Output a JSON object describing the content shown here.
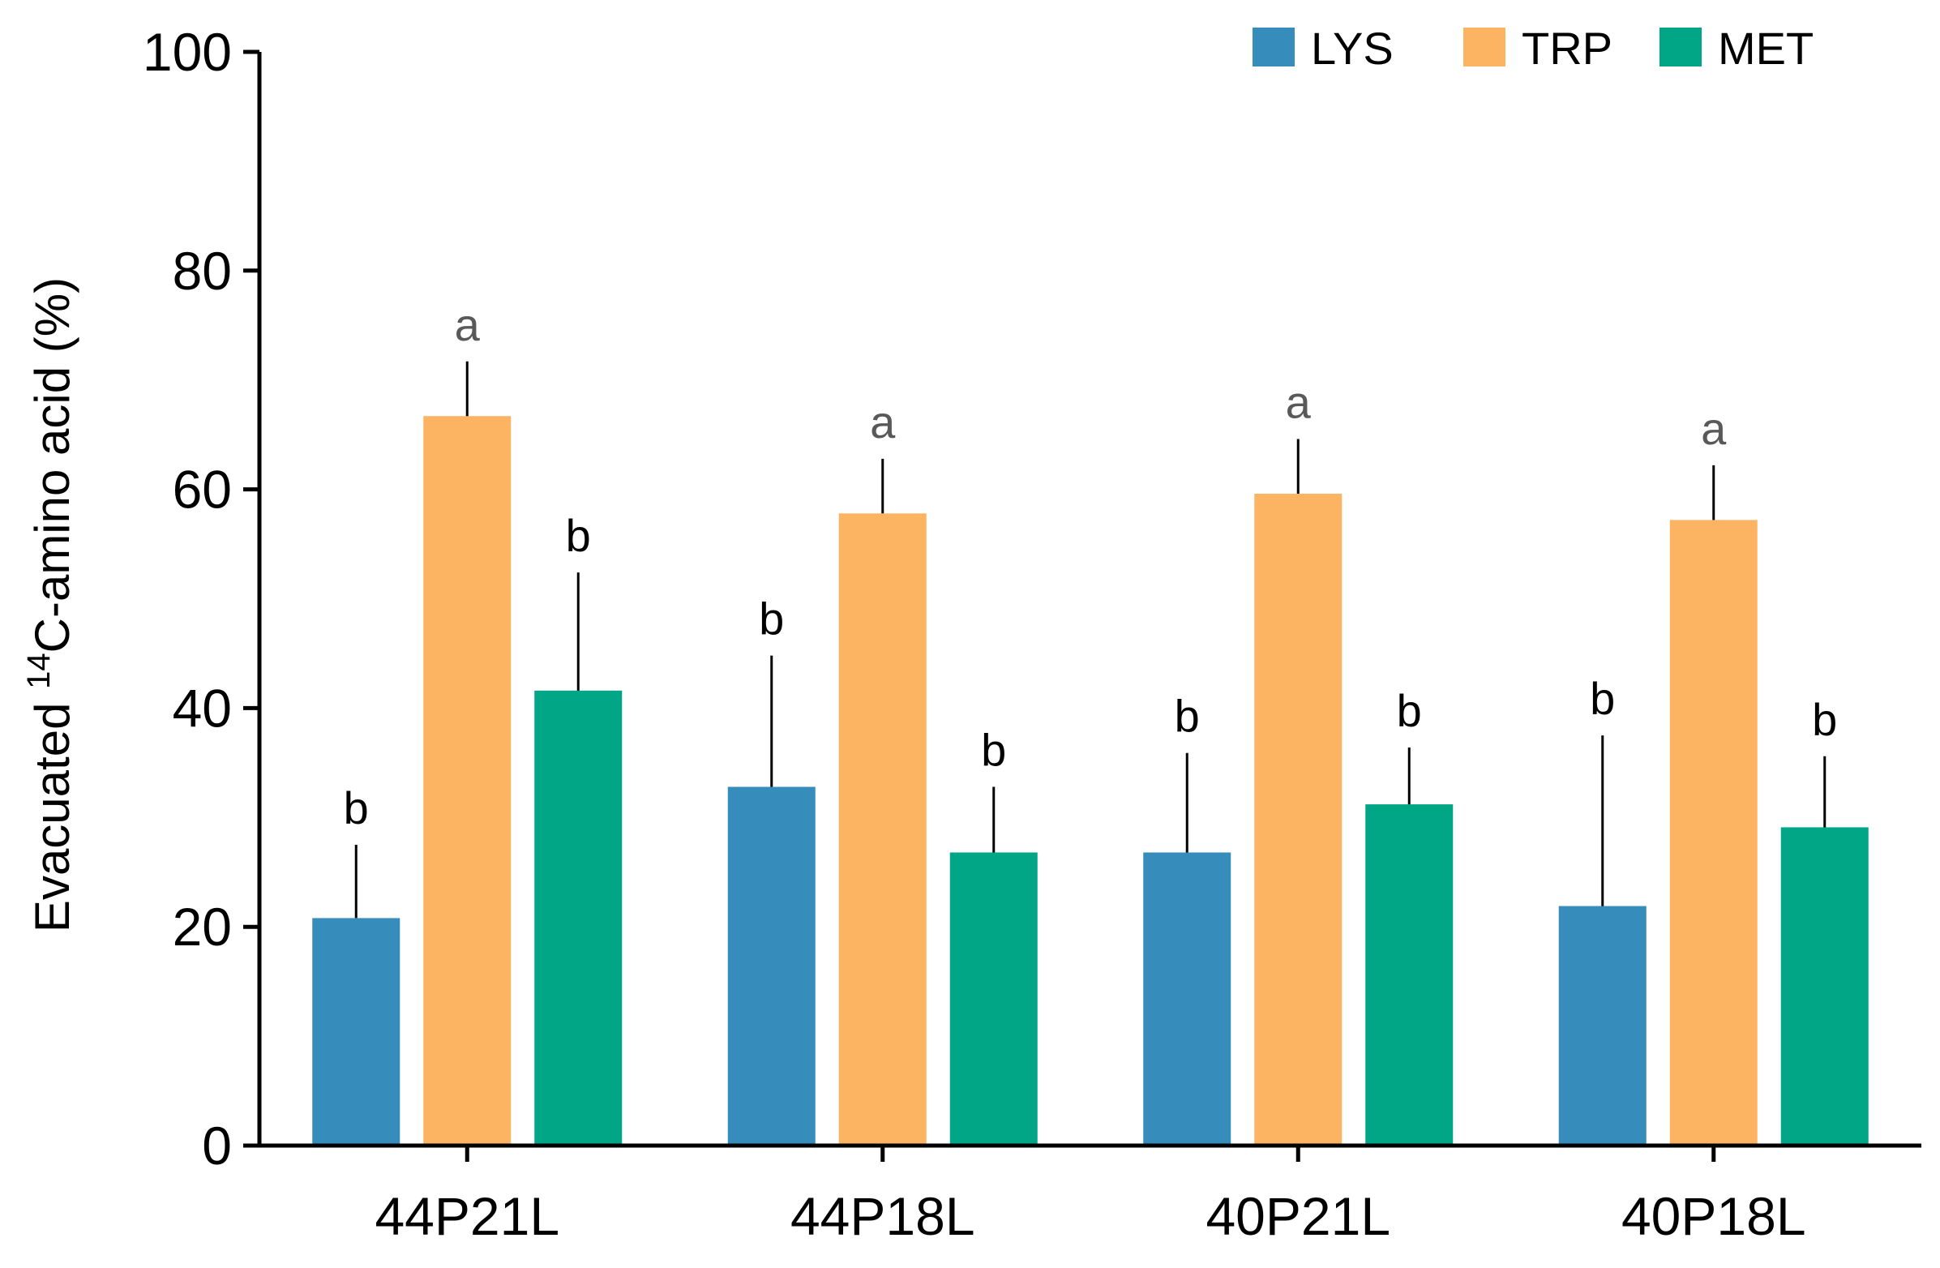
{
  "chart_data": {
    "type": "bar",
    "title": "",
    "xlabel": "",
    "ylabel": {
      "prefix": "Evacuated ",
      "superscript": "14",
      "suffix": "C-amino acid (%)"
    },
    "ylim": [
      0,
      100
    ],
    "yticks": [
      "0",
      "20",
      "40",
      "60",
      "80",
      "100"
    ],
    "legend_position": "top-right",
    "categories": [
      "44P21L",
      "44P18L",
      "40P21L",
      "40P18L"
    ],
    "series": [
      {
        "name": "LYS",
        "color": "#368cbb",
        "values": [
          20.8,
          32.8,
          26.8,
          21.9
        ],
        "errors": [
          6.7,
          12.0,
          9.1,
          15.6
        ],
        "letters": [
          "b",
          "b",
          "b",
          "b"
        ]
      },
      {
        "name": "TRP",
        "color": "#fdb462",
        "values": [
          66.7,
          57.8,
          59.6,
          57.2
        ],
        "errors": [
          5.0,
          5.0,
          5.0,
          5.0
        ],
        "letters": [
          "a",
          "a",
          "a",
          "a"
        ]
      },
      {
        "name": "MET",
        "color": "#00a686",
        "values": [
          41.6,
          26.8,
          31.2,
          29.1
        ],
        "errors": [
          10.8,
          6.0,
          5.2,
          6.5
        ],
        "letters": [
          "b",
          "b",
          "b",
          "b"
        ]
      }
    ]
  }
}
